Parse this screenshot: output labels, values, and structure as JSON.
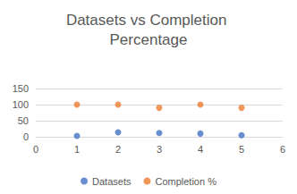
{
  "chart_data": {
    "type": "scatter",
    "title": "Datasets vs Completion Percentage",
    "x": [
      1,
      2,
      3,
      4,
      5
    ],
    "series": [
      {
        "name": "Datasets",
        "color": "#4472c4",
        "values": [
          3,
          14,
          12,
          10,
          5
        ]
      },
      {
        "name": "Completion %",
        "color": "#ed7d31",
        "values": [
          100,
          100,
          90,
          100,
          90
        ]
      }
    ],
    "xlim": [
      0,
      6
    ],
    "xticks": [
      0,
      1,
      2,
      3,
      4,
      5,
      6
    ],
    "ylim": [
      0,
      150
    ],
    "yticks": [
      0,
      50,
      100,
      150
    ],
    "grid": true,
    "legend": "bottom",
    "marker": "circle"
  }
}
